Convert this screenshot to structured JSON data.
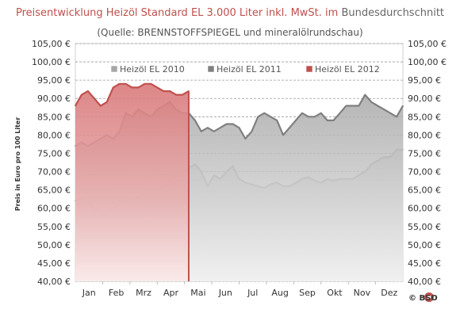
{
  "chart_data": {
    "type": "area",
    "title_part1": "Preisentwicklung Heizöl Standard EL 3.000 Liter inkl. MwSt. im",
    "title_part2": "Bundesdurchschnitt",
    "subtitle": "(Quelle: BRENNSTOFFSPIEGEL  und mineralölrundschau)",
    "ylabel": "Preis in Euro pro 100 Liter",
    "ylim": [
      40,
      105
    ],
    "ytick_values": [
      40,
      45,
      50,
      55,
      60,
      65,
      70,
      75,
      80,
      85,
      90,
      95,
      100,
      105
    ],
    "ytick_labels": [
      "40,00 €",
      "45,00 €",
      "50,00 €",
      "55,00 €",
      "60,00 €",
      "65,00 €",
      "70,00 €",
      "75,00 €",
      "80,00 €",
      "85,00 €",
      "90,00 €",
      "95,00 €",
      "100,00 €",
      "105,00 €"
    ],
    "months": [
      "Jan",
      "Feb",
      "Mrz",
      "Apr",
      "Mai",
      "Jun",
      "Jul",
      "Aug",
      "Sep",
      "Okt",
      "Nov",
      "Dez"
    ],
    "x_unit": "week of year",
    "xlim": [
      1,
      53
    ],
    "grid": true,
    "legend_position": "top",
    "series": [
      {
        "name": "Heizöl EL 2010",
        "color": "#a6a6a6",
        "x": [
          1,
          2,
          3,
          4,
          5,
          6,
          7,
          8,
          9,
          10,
          11,
          12,
          13,
          14,
          15,
          16,
          17,
          18,
          19,
          20,
          21,
          22,
          23,
          24,
          25,
          26,
          27,
          28,
          29,
          30,
          31,
          32,
          33,
          34,
          35,
          36,
          37,
          38,
          39,
          40,
          41,
          42,
          43,
          44,
          45,
          46,
          47,
          48,
          49,
          50,
          51,
          52,
          53
        ],
        "values": [
          62,
          63,
          61,
          60,
          59,
          59,
          60,
          61,
          62,
          62.5,
          63,
          64,
          65,
          65.5,
          66,
          68,
          69,
          70,
          71,
          72,
          70,
          66,
          69,
          68,
          70,
          71.5,
          68,
          67,
          66.5,
          66,
          65.5,
          66.5,
          67,
          66,
          66,
          67,
          68,
          68.5,
          67.5,
          67,
          68,
          67.5,
          68,
          68,
          68,
          69,
          70,
          72,
          73,
          74,
          74,
          76,
          76
        ]
      },
      {
        "name": "Heizöl EL 2011",
        "color": "#7f7f7f",
        "x": [
          1,
          2,
          3,
          4,
          5,
          6,
          7,
          8,
          9,
          10,
          11,
          12,
          13,
          14,
          15,
          16,
          17,
          18,
          19,
          20,
          21,
          22,
          23,
          24,
          25,
          26,
          27,
          28,
          29,
          30,
          31,
          32,
          33,
          34,
          35,
          36,
          37,
          38,
          39,
          40,
          41,
          42,
          43,
          44,
          45,
          46,
          47,
          48,
          49,
          50,
          51,
          52,
          53
        ],
        "values": [
          77,
          78,
          77,
          78,
          79,
          80,
          79,
          81,
          86,
          85,
          87,
          86,
          85,
          87,
          88,
          89,
          87,
          86,
          86,
          84,
          81,
          82,
          81,
          82,
          83,
          83,
          82,
          79,
          81,
          85,
          86,
          85,
          84,
          80,
          82,
          84,
          86,
          85,
          85,
          86,
          84,
          84,
          86,
          88,
          88,
          88,
          91,
          89,
          88,
          87,
          86,
          85,
          88
        ]
      },
      {
        "name": "Heizöl EL 2012",
        "color": "#c0504d",
        "x": [
          1,
          2,
          3,
          4,
          5,
          6,
          7,
          8,
          9,
          10,
          11,
          12,
          13,
          14,
          15,
          16,
          17,
          18,
          19
        ],
        "values": [
          88,
          91,
          92,
          90,
          88,
          89,
          93,
          94,
          94,
          93,
          93,
          94,
          94,
          93,
          92,
          92,
          91,
          91,
          92
        ]
      }
    ],
    "logo": "© BSO"
  }
}
